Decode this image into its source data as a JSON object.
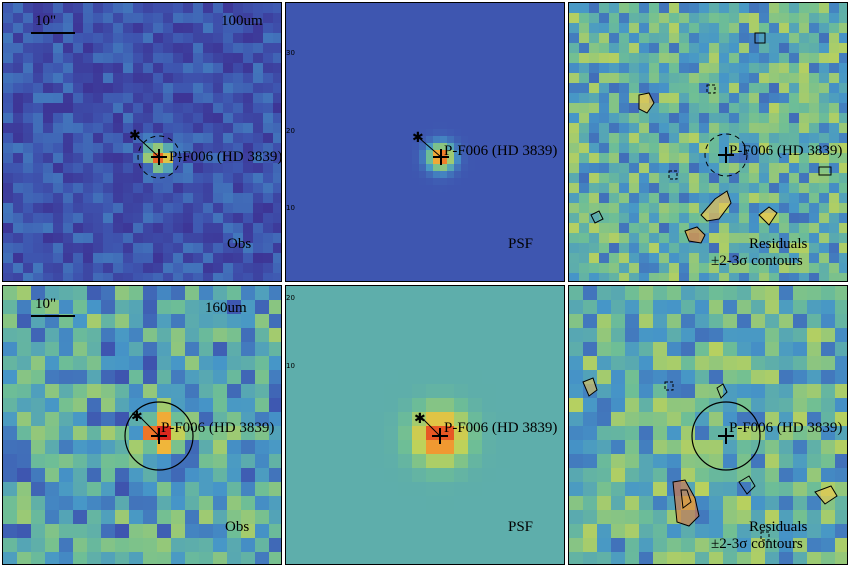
{
  "scale_bar_label": "10\"",
  "source_label": "P-F006 (HD 3839)",
  "rows": [
    {
      "band": "100um",
      "panels": [
        {
          "kind": "obs",
          "label": "Obs",
          "label2": ""
        },
        {
          "kind": "psf",
          "label": "PSF",
          "label2": ""
        },
        {
          "kind": "res",
          "label": "Residuals",
          "label2": "±2-3σ contours"
        }
      ]
    },
    {
      "band": "160um",
      "panels": [
        {
          "kind": "obs",
          "label": "Obs",
          "label2": ""
        },
        {
          "kind": "psf",
          "label": "PSF",
          "label2": ""
        },
        {
          "kind": "res",
          "label": "Residuals",
          "label2": "±2-3σ contours"
        }
      ]
    }
  ],
  "psf_axis_ticks": {
    "top": [
      "30",
      "20",
      "10"
    ],
    "bottom": [
      "20",
      "10"
    ]
  },
  "colors": {
    "background_blue": "#3e56b0",
    "psf_160_background": "#63a8a6",
    "peak": "#e03a22",
    "frame": "#000000"
  }
}
